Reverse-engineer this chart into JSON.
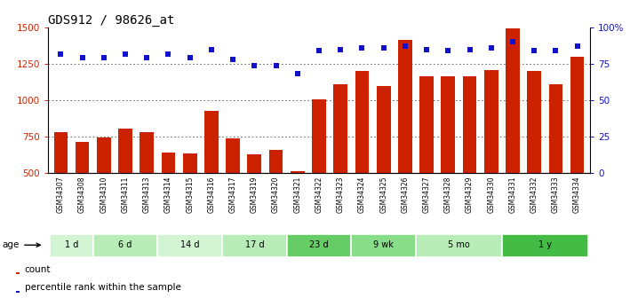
{
  "title": "GDS912 / 98626_at",
  "samples": [
    "GSM34307",
    "GSM34308",
    "GSM34310",
    "GSM34311",
    "GSM34313",
    "GSM34314",
    "GSM34315",
    "GSM34316",
    "GSM34317",
    "GSM34319",
    "GSM34320",
    "GSM34321",
    "GSM34322",
    "GSM34323",
    "GSM34324",
    "GSM34325",
    "GSM34326",
    "GSM34327",
    "GSM34328",
    "GSM34329",
    "GSM34330",
    "GSM34331",
    "GSM34332",
    "GSM34333",
    "GSM34334"
  ],
  "counts": [
    780,
    715,
    745,
    805,
    780,
    640,
    635,
    925,
    740,
    625,
    660,
    510,
    1005,
    1110,
    1200,
    1100,
    1415,
    1165,
    1165,
    1165,
    1205,
    1495,
    1200,
    1110,
    1300
  ],
  "percentiles": [
    82,
    79,
    79,
    82,
    79,
    82,
    79,
    85,
    78,
    74,
    74,
    68,
    84,
    85,
    86,
    86,
    87,
    85,
    84,
    85,
    86,
    90,
    84,
    84,
    87
  ],
  "groups": [
    {
      "label": "1 d",
      "start": 0,
      "end": 2,
      "color": "#d4f5d4"
    },
    {
      "label": "6 d",
      "start": 2,
      "end": 5,
      "color": "#b8edb8"
    },
    {
      "label": "14 d",
      "start": 5,
      "end": 8,
      "color": "#d4f5d4"
    },
    {
      "label": "17 d",
      "start": 8,
      "end": 11,
      "color": "#b8edb8"
    },
    {
      "label": "23 d",
      "start": 11,
      "end": 14,
      "color": "#66cc66"
    },
    {
      "label": "9 wk",
      "start": 14,
      "end": 17,
      "color": "#88dd88"
    },
    {
      "label": "5 mo",
      "start": 17,
      "end": 21,
      "color": "#b8edb8"
    },
    {
      "label": "1 y",
      "start": 21,
      "end": 25,
      "color": "#44bb44"
    }
  ],
  "ylim_left": [
    500,
    1500
  ],
  "ylim_right": [
    0,
    100
  ],
  "yticks_left": [
    500,
    750,
    1000,
    1250,
    1500
  ],
  "yticks_right": [
    0,
    25,
    50,
    75,
    100
  ],
  "bar_color": "#cc2200",
  "dot_color": "#1111cc",
  "bg_color": "#ffffff",
  "grid_color": "#555555",
  "label_bg_color": "#cccccc",
  "legend_items": [
    "count",
    "percentile rank within the sample"
  ],
  "title_fontsize": 10
}
